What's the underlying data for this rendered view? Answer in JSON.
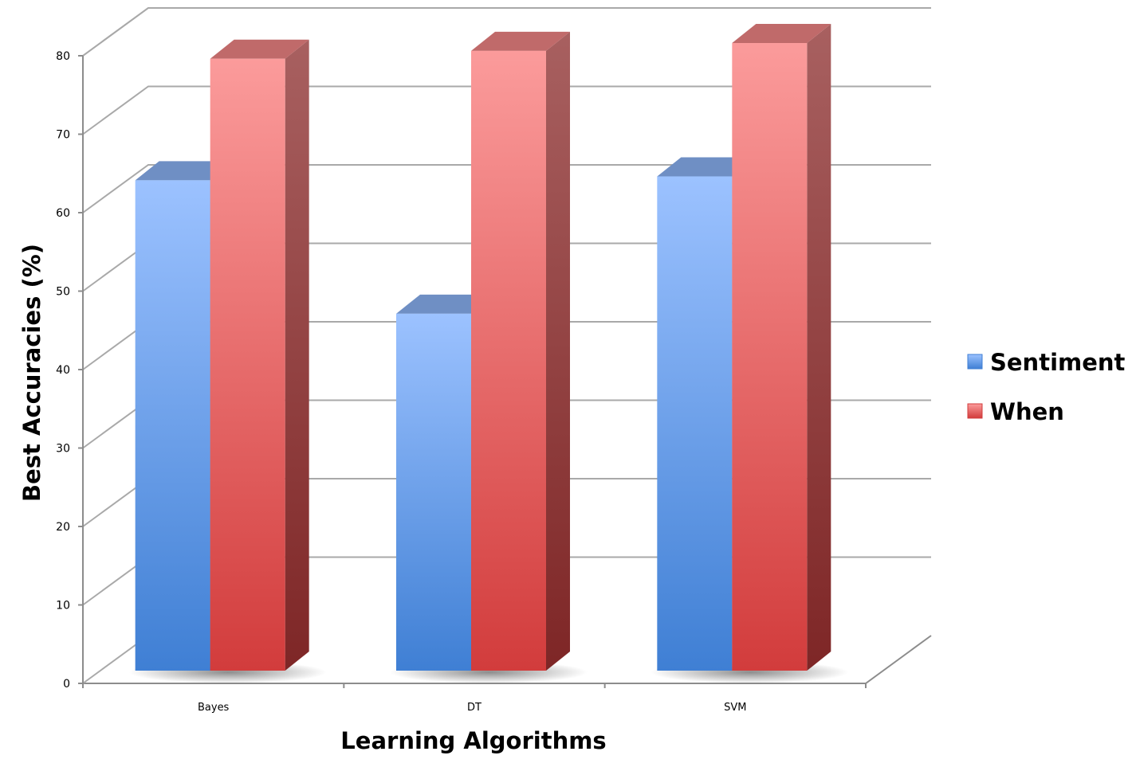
{
  "chart_data": {
    "type": "bar",
    "categories": [
      "Bayes",
      "DT",
      "SVM"
    ],
    "series": [
      {
        "name": "Sentiment",
        "values": [
          62.5,
          45.5,
          63
        ],
        "color": "#4f8fe6"
      },
      {
        "name": "When",
        "values": [
          78,
          79,
          80
        ],
        "color": "#e05a5a"
      }
    ],
    "xlabel": "Learning Algorithms",
    "ylabel": "Best Accuracies (%)",
    "ylim": [
      0,
      80
    ],
    "yticks": [
      "0",
      "10",
      "20",
      "30",
      "40",
      "50",
      "60",
      "70",
      "80"
    ],
    "grid": true,
    "legend_position": "right",
    "style": "3d-clustered-column"
  }
}
